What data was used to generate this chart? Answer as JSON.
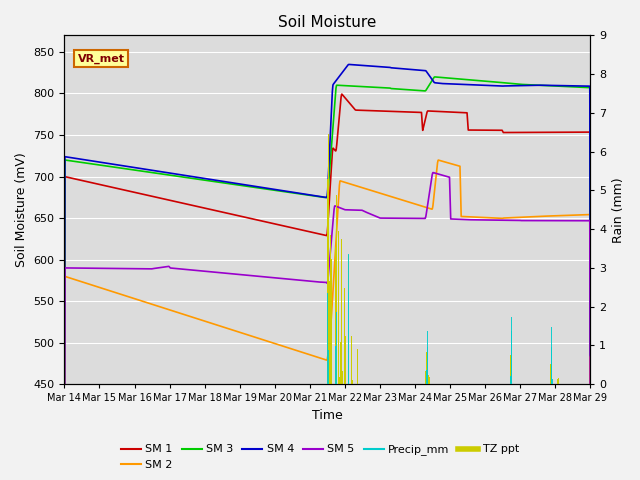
{
  "title": "Soil Moisture",
  "xlabel": "Time",
  "ylabel_left": "Soil Moisture (mV)",
  "ylabel_right": "Rain (mm)",
  "ylim_left": [
    450,
    870
  ],
  "ylim_right": [
    0.0,
    9.0
  ],
  "yticks_left": [
    450,
    500,
    550,
    600,
    650,
    700,
    750,
    800,
    850
  ],
  "yticks_right": [
    0.0,
    1.0,
    2.0,
    3.0,
    4.0,
    5.0,
    6.0,
    7.0,
    8.0,
    9.0
  ],
  "xtick_labels": [
    "Mar 14",
    "Mar 15",
    "Mar 16",
    "Mar 17",
    "Mar 18",
    "Mar 19",
    "Mar 20",
    "Mar 21",
    "Mar 22",
    "Mar 23",
    "Mar 24",
    "Mar 25",
    "Mar 26",
    "Mar 27",
    "Mar 28",
    "Mar 29"
  ],
  "colors": {
    "SM1": "#cc0000",
    "SM2": "#ff9900",
    "SM3": "#00cc00",
    "SM4": "#0000cc",
    "SM5": "#9900cc",
    "Precip": "#00cccc",
    "TZ": "#cccc00",
    "background": "#dcdcdc",
    "grid": "#ffffff"
  },
  "annotation_text": "VR_met",
  "annotation_box_color": "#ffff99",
  "annotation_border_color": "#cc6600"
}
